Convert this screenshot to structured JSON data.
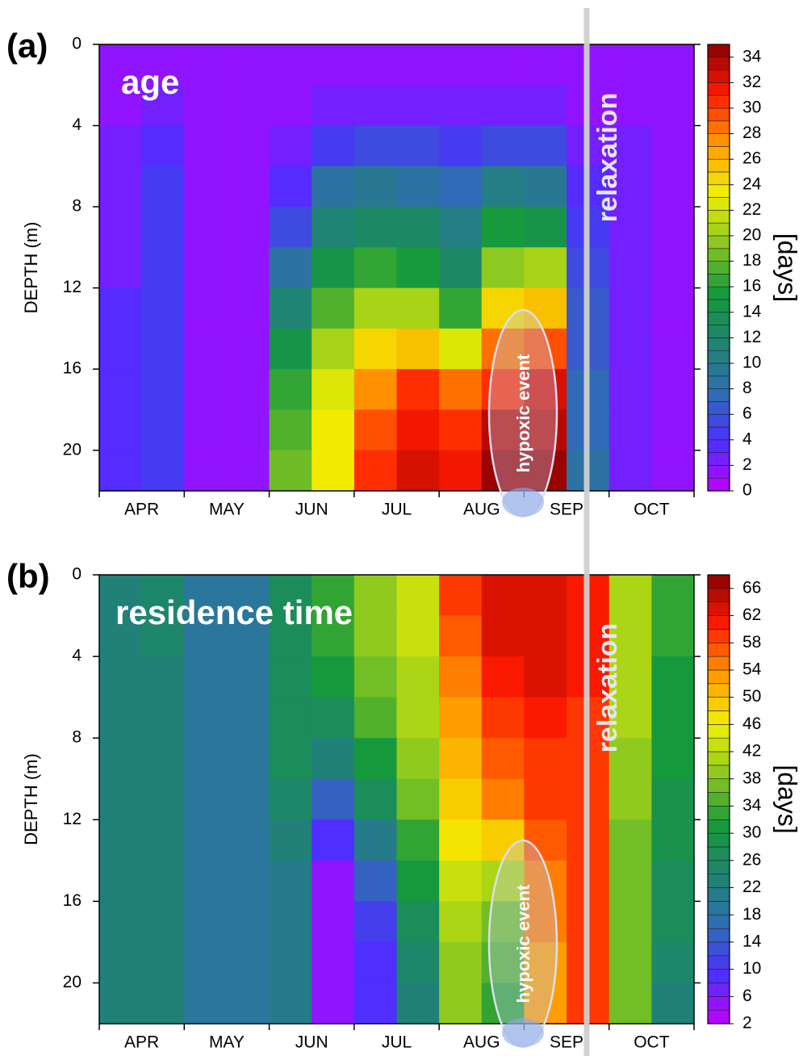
{
  "chart_data": [
    {
      "type": "heatmap",
      "panel": "(a)",
      "title": "age",
      "annotations": [
        "relaxation",
        "hypoxic event"
      ],
      "ylabel": "DEPTH (m)",
      "colorbar_label": "[days]",
      "categories": [
        "APR",
        "MAY",
        "JUN",
        "JUL",
        "AUG",
        "SEP",
        "OCT"
      ],
      "xlim": [
        0,
        7
      ],
      "xticks": [
        0,
        1,
        2,
        3,
        4,
        5,
        6,
        7
      ],
      "ylim": [
        0,
        22
      ],
      "yticks": [
        0,
        4,
        8,
        12,
        16,
        20
      ],
      "y_inverted": true,
      "x": [
        0.25,
        0.75,
        1.25,
        1.75,
        2.25,
        2.75,
        3.25,
        3.75,
        4.25,
        4.75,
        5.25,
        5.75,
        6.25,
        6.75
      ],
      "y": [
        1,
        3,
        5,
        7,
        9,
        11,
        13,
        15,
        17,
        19,
        21
      ],
      "z": [
        [
          1,
          1,
          1,
          1,
          1,
          1,
          1,
          1,
          1,
          1,
          1,
          1,
          1,
          1
        ],
        [
          1,
          2,
          1,
          1,
          1,
          2,
          2,
          2,
          2,
          2,
          2,
          1,
          1,
          1
        ],
        [
          2,
          3,
          1,
          1,
          2,
          4,
          5,
          5,
          4,
          5,
          5,
          2,
          2,
          1
        ],
        [
          2,
          4,
          1,
          1,
          3,
          8,
          9,
          8,
          7,
          10,
          9,
          3,
          2,
          1
        ],
        [
          2,
          4,
          1,
          1,
          5,
          11,
          12,
          12,
          10,
          15,
          14,
          4,
          2,
          1
        ],
        [
          2,
          4,
          1,
          1,
          8,
          14,
          16,
          15,
          12,
          19,
          20,
          5,
          2,
          1
        ],
        [
          3,
          4,
          1,
          1,
          11,
          17,
          20,
          20,
          16,
          24,
          25,
          6,
          2,
          1
        ],
        [
          3,
          4,
          1,
          1,
          14,
          20,
          24,
          25,
          22,
          28,
          29,
          6,
          2,
          1
        ],
        [
          3,
          4,
          1,
          1,
          16,
          22,
          27,
          30,
          28,
          30,
          32,
          7,
          2,
          1
        ],
        [
          3,
          4,
          1,
          1,
          17,
          23,
          29,
          31,
          30,
          33,
          33,
          7,
          2,
          1
        ],
        [
          3,
          4,
          1,
          1,
          18,
          23,
          30,
          32,
          31,
          34,
          34,
          8,
          2,
          1
        ]
      ],
      "zlim": [
        0,
        35
      ],
      "levels": 35,
      "zticks": [
        0,
        2,
        4,
        6,
        8,
        10,
        12,
        14,
        16,
        18,
        20,
        22,
        24,
        26,
        28,
        30,
        32,
        34
      ],
      "colormap": [
        "#c000ff",
        "#4a30ff",
        "#2f6fb0",
        "#1f8470",
        "#169a3a",
        "#8cc820",
        "#f2f000",
        "#ff9a00",
        "#ff1a00",
        "#8b0000"
      ]
    },
    {
      "type": "heatmap",
      "panel": "(b)",
      "title": "residence time",
      "annotations": [
        "relaxation",
        "hypoxic event"
      ],
      "ylabel": "DEPTH (m)",
      "colorbar_label": "[days]",
      "categories": [
        "APR",
        "MAY",
        "JUN",
        "JUL",
        "AUG",
        "SEP",
        "OCT"
      ],
      "xlim": [
        0,
        7
      ],
      "xticks": [
        0,
        1,
        2,
        3,
        4,
        5,
        6,
        7
      ],
      "ylim": [
        0,
        22
      ],
      "yticks": [
        0,
        4,
        8,
        12,
        16,
        20
      ],
      "y_inverted": true,
      "x": [
        0.25,
        0.75,
        1.25,
        1.75,
        2.25,
        2.75,
        3.25,
        3.75,
        4.25,
        4.75,
        5.25,
        5.75,
        6.25,
        6.75
      ],
      "y": [
        1,
        3,
        5,
        7,
        9,
        11,
        13,
        15,
        17,
        19,
        21
      ],
      "z": [
        [
          22,
          24,
          18,
          18,
          26,
          32,
          38,
          42,
          58,
          62,
          62,
          60,
          40,
          32
        ],
        [
          22,
          24,
          18,
          18,
          26,
          32,
          38,
          42,
          56,
          62,
          62,
          60,
          40,
          32
        ],
        [
          22,
          22,
          18,
          18,
          26,
          30,
          36,
          40,
          54,
          60,
          62,
          60,
          40,
          30
        ],
        [
          22,
          22,
          18,
          18,
          26,
          26,
          34,
          40,
          52,
          58,
          60,
          58,
          40,
          30
        ],
        [
          22,
          22,
          18,
          18,
          26,
          22,
          30,
          38,
          50,
          56,
          58,
          58,
          38,
          30
        ],
        [
          22,
          22,
          18,
          18,
          24,
          14,
          26,
          36,
          48,
          54,
          58,
          58,
          38,
          28
        ],
        [
          22,
          22,
          18,
          18,
          22,
          8,
          20,
          32,
          46,
          48,
          56,
          58,
          36,
          28
        ],
        [
          22,
          22,
          18,
          18,
          20,
          4,
          14,
          30,
          42,
          40,
          54,
          58,
          36,
          26
        ],
        [
          22,
          22,
          18,
          18,
          20,
          4,
          10,
          26,
          40,
          36,
          54,
          58,
          36,
          26
        ],
        [
          22,
          22,
          18,
          18,
          20,
          4,
          8,
          24,
          38,
          34,
          52,
          58,
          36,
          24
        ],
        [
          22,
          22,
          18,
          18,
          20,
          4,
          8,
          22,
          38,
          32,
          52,
          58,
          36,
          22
        ]
      ],
      "zlim": [
        2,
        68
      ],
      "levels": 33,
      "zticks": [
        2,
        6,
        10,
        14,
        18,
        22,
        26,
        30,
        34,
        38,
        42,
        46,
        50,
        54,
        58,
        62,
        66
      ],
      "colormap": [
        "#c000ff",
        "#4a30ff",
        "#2f6fb0",
        "#1f8470",
        "#169a3a",
        "#8cc820",
        "#f2f000",
        "#ff9a00",
        "#ff1a00",
        "#8b0000"
      ]
    }
  ]
}
